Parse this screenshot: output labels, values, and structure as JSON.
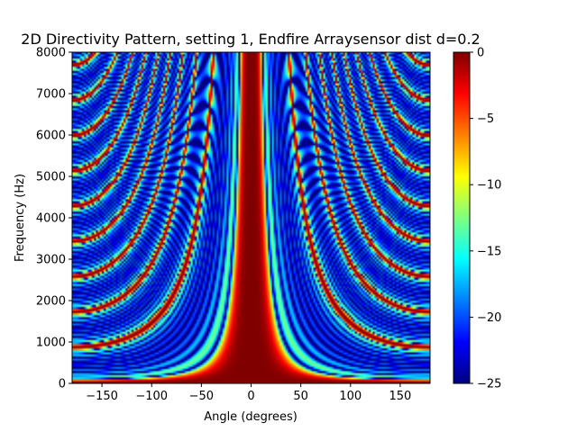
{
  "chart_data": {
    "type": "heatmap",
    "title": "2D Directivity Pattern, setting 1,  Endfire Arraysensor dist d=0.2",
    "xlabel": "Angle (degrees)",
    "ylabel": "Frequency (Hz)",
    "xlim": [
      -180,
      180
    ],
    "ylim": [
      0,
      8000
    ],
    "xticks": [
      -150,
      -100,
      -50,
      0,
      50,
      100,
      150
    ],
    "yticks": [
      0,
      1000,
      2000,
      3000,
      4000,
      5000,
      6000,
      7000,
      8000
    ],
    "colorbar": {
      "colormap": "jet",
      "range": [
        -25,
        0
      ],
      "ticks": [
        0,
        -5,
        -10,
        -15,
        -20,
        -25
      ]
    },
    "pattern": {
      "main_lobe_angle_deg": 0,
      "main_lobe_width_at_8000hz_deg": 18,
      "main_lobe_width_at_200hz_deg": 170,
      "sidelobe_arcs_present": true,
      "symmetric_about_0_deg": true
    }
  }
}
